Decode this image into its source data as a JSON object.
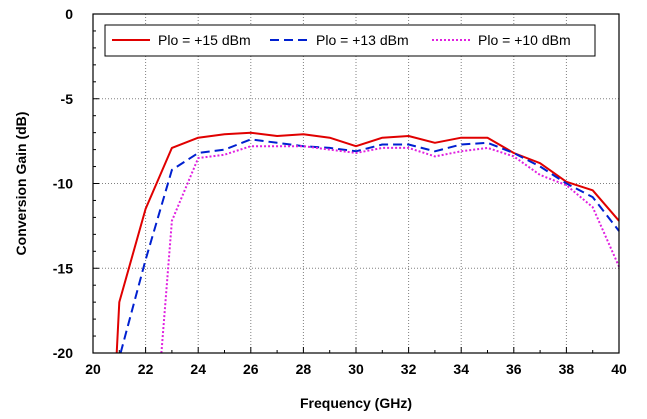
{
  "chart_data": {
    "type": "line",
    "title": "",
    "xlabel": "Frequency (GHz)",
    "ylabel": "Conversion Gain (dB)",
    "xlim": [
      20,
      40
    ],
    "ylim": [
      -20,
      0
    ],
    "xticks": [
      20,
      22,
      24,
      26,
      28,
      30,
      32,
      34,
      36,
      38,
      40
    ],
    "yticks": [
      0,
      -5,
      -10,
      -15,
      -20
    ],
    "grid": true,
    "legend_position": "top",
    "series": [
      {
        "name": "Plo = +15 dBm",
        "color": "#e00000",
        "style": "solid",
        "x": [
          20.9,
          21,
          22,
          23,
          24,
          25,
          26,
          27,
          28,
          29,
          30,
          31,
          32,
          33,
          34,
          35,
          36,
          37,
          38,
          39,
          40
        ],
        "y": [
          -20,
          -17,
          -11.5,
          -7.9,
          -7.3,
          -7.1,
          -7.0,
          -7.2,
          -7.1,
          -7.3,
          -7.8,
          -7.3,
          -7.2,
          -7.6,
          -7.3,
          -7.3,
          -8.2,
          -8.8,
          -9.9,
          -10.4,
          -12.2
        ]
      },
      {
        "name": "Plo = +13 dBm",
        "color": "#0020d0",
        "style": "dashed",
        "x": [
          21.05,
          22,
          23,
          24,
          25,
          26,
          27,
          28,
          29,
          30,
          31,
          32,
          33,
          34,
          35,
          36,
          37,
          38,
          39,
          40
        ],
        "y": [
          -20,
          -14.5,
          -9.2,
          -8.2,
          -8.0,
          -7.4,
          -7.6,
          -7.8,
          -7.9,
          -8.1,
          -7.7,
          -7.7,
          -8.1,
          -7.7,
          -7.6,
          -8.2,
          -9.0,
          -10.0,
          -10.8,
          -12.8
        ]
      },
      {
        "name": "Plo = +10 dBm",
        "color": "#e020e0",
        "style": "dotted",
        "x": [
          22.6,
          23,
          24,
          25,
          26,
          27,
          28,
          29,
          30,
          31,
          32,
          33,
          34,
          35,
          36,
          37,
          38,
          39,
          40
        ],
        "y": [
          -20,
          -12.2,
          -8.5,
          -8.3,
          -7.8,
          -7.8,
          -7.8,
          -8.0,
          -8.2,
          -7.9,
          -7.9,
          -8.4,
          -8.1,
          -7.9,
          -8.4,
          -9.5,
          -10.1,
          -11.4,
          -14.9
        ]
      }
    ]
  }
}
